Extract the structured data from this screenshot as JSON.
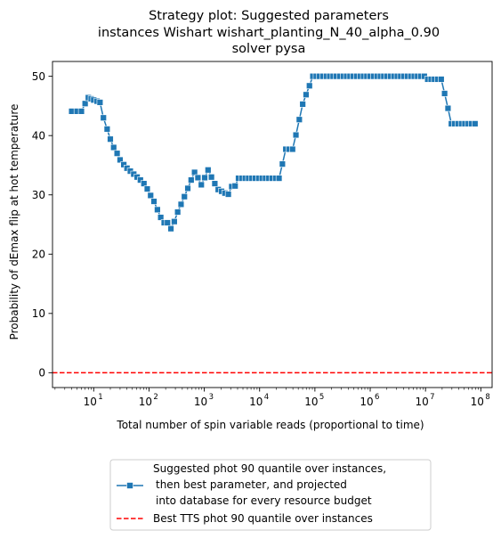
{
  "chart_data": {
    "type": "line",
    "title_lines": [
      "Strategy plot: Suggested parameters",
      "instances Wishart wishart_planting_N_40_alpha_0.90",
      "solver pysa"
    ],
    "xlabel": "Total number of spin variable reads (proportional to time)",
    "ylabel": "Probability of dEmax flip at hot temperature",
    "xscale": "log",
    "xlim": [
      1.8,
      160000000.0
    ],
    "ylim": [
      -2.5,
      52.5
    ],
    "x_ticks": [
      {
        "value": 10,
        "base": "10",
        "exp": "1"
      },
      {
        "value": 100,
        "base": "10",
        "exp": "2"
      },
      {
        "value": 1000,
        "base": "10",
        "exp": "3"
      },
      {
        "value": 10000,
        "base": "10",
        "exp": "4"
      },
      {
        "value": 100000,
        "base": "10",
        "exp": "5"
      },
      {
        "value": 1000000,
        "base": "10",
        "exp": "6"
      },
      {
        "value": 10000000,
        "base": "10",
        "exp": "7"
      },
      {
        "value": 100000000,
        "base": "10",
        "exp": "8"
      }
    ],
    "y_ticks": [
      {
        "value": 0,
        "label": "0"
      },
      {
        "value": 10,
        "label": "10"
      },
      {
        "value": 20,
        "label": "20"
      },
      {
        "value": 30,
        "label": "30"
      },
      {
        "value": 40,
        "label": "40"
      },
      {
        "value": 50,
        "label": "50"
      }
    ],
    "grid": false,
    "legend_position": "below",
    "series": [
      {
        "name_lines": [
          "Suggested phot 90 quantile over instances,",
          "then best parameter, and projected",
          "into database for every resource budget"
        ],
        "color": "#1f77b4",
        "style": "solid-square-markers",
        "x": [
          4,
          5,
          6,
          7,
          8,
          9,
          10,
          11.5,
          13,
          15,
          17.5,
          20,
          23,
          26.5,
          30,
          35,
          40,
          46,
          53,
          61,
          70,
          81,
          93,
          107,
          123,
          142,
          163,
          188,
          216,
          249,
          287,
          330,
          380,
          437,
          503,
          579,
          667,
          767,
          883,
          1017,
          1170,
          1347,
          1550,
          1785,
          2054,
          2365,
          2722,
          3133,
          3606,
          4151,
          4778,
          5500,
          6330,
          7287,
          8388,
          9655,
          11114,
          12794,
          14726,
          16951,
          19513,
          22461,
          25854,
          29760,
          34256,
          39431,
          45388,
          52245,
          60138,
          69224,
          79682,
          91719,
          105575,
          121524,
          139884,
          161016,
          185341,
          213340,
          245570,
          282669,
          325372,
          374525,
          431104,
          496234,
          571200,
          657494,
          756824,
          871161,
          1002771,
          1154260,
          1328636,
          1529359,
          1760406,
          2026312,
          2332450,
          2684811,
          3090394,
          3557261,
          4094658,
          4713251,
          5425301,
          6244891,
          7188305,
          8274201,
          9524064,
          10962868,
          12619004,
          14525331,
          16719614,
          19245433,
          22152889,
          25499581,
          29351822,
          33785954,
          38890031,
          44765226,
          51528000,
          59313000,
          68273000,
          78587000
        ],
        "y": [
          44.1,
          44.1,
          44.1,
          45.4,
          46.4,
          46.2,
          46.0,
          45.8,
          45.6,
          43.0,
          41.1,
          39.4,
          38.0,
          37.0,
          35.9,
          35.1,
          34.5,
          34.0,
          33.5,
          33.0,
          32.5,
          31.9,
          31.0,
          29.9,
          28.9,
          27.5,
          26.2,
          25.3,
          25.3,
          24.3,
          25.5,
          27.1,
          28.4,
          29.7,
          31.1,
          32.5,
          33.8,
          32.9,
          31.7,
          32.9,
          34.2,
          33.0,
          31.9,
          30.9,
          30.6,
          30.3,
          30.1,
          31.4,
          31.5,
          32.8,
          32.8,
          32.8,
          32.8,
          32.8,
          32.8,
          32.8,
          32.8,
          32.8,
          32.8,
          32.8,
          32.8,
          32.8,
          35.2,
          37.7,
          37.7,
          37.7,
          40.1,
          42.7,
          45.3,
          46.9,
          48.4,
          50.0,
          50.0,
          50.0,
          50.0,
          50.0,
          50.0,
          50.0,
          50.0,
          50.0,
          50.0,
          50.0,
          50.0,
          50.0,
          50.0,
          50.0,
          50.0,
          50.0,
          50.0,
          50.0,
          50.0,
          50.0,
          50.0,
          50.0,
          50.0,
          50.0,
          50.0,
          50.0,
          50.0,
          50.0,
          50.0,
          50.0,
          50.0,
          50.0,
          50.0,
          49.5,
          49.5,
          49.5,
          49.5,
          49.5,
          47.1,
          44.6,
          42.0,
          42.0,
          42.0,
          42.0,
          42.0,
          42.0,
          42.0,
          42.0
        ]
      }
    ],
    "reference_line": {
      "name": "Best TTS phot 90 quantile over instances",
      "y": 0,
      "color": "#ff0000",
      "style": "dashed"
    }
  }
}
